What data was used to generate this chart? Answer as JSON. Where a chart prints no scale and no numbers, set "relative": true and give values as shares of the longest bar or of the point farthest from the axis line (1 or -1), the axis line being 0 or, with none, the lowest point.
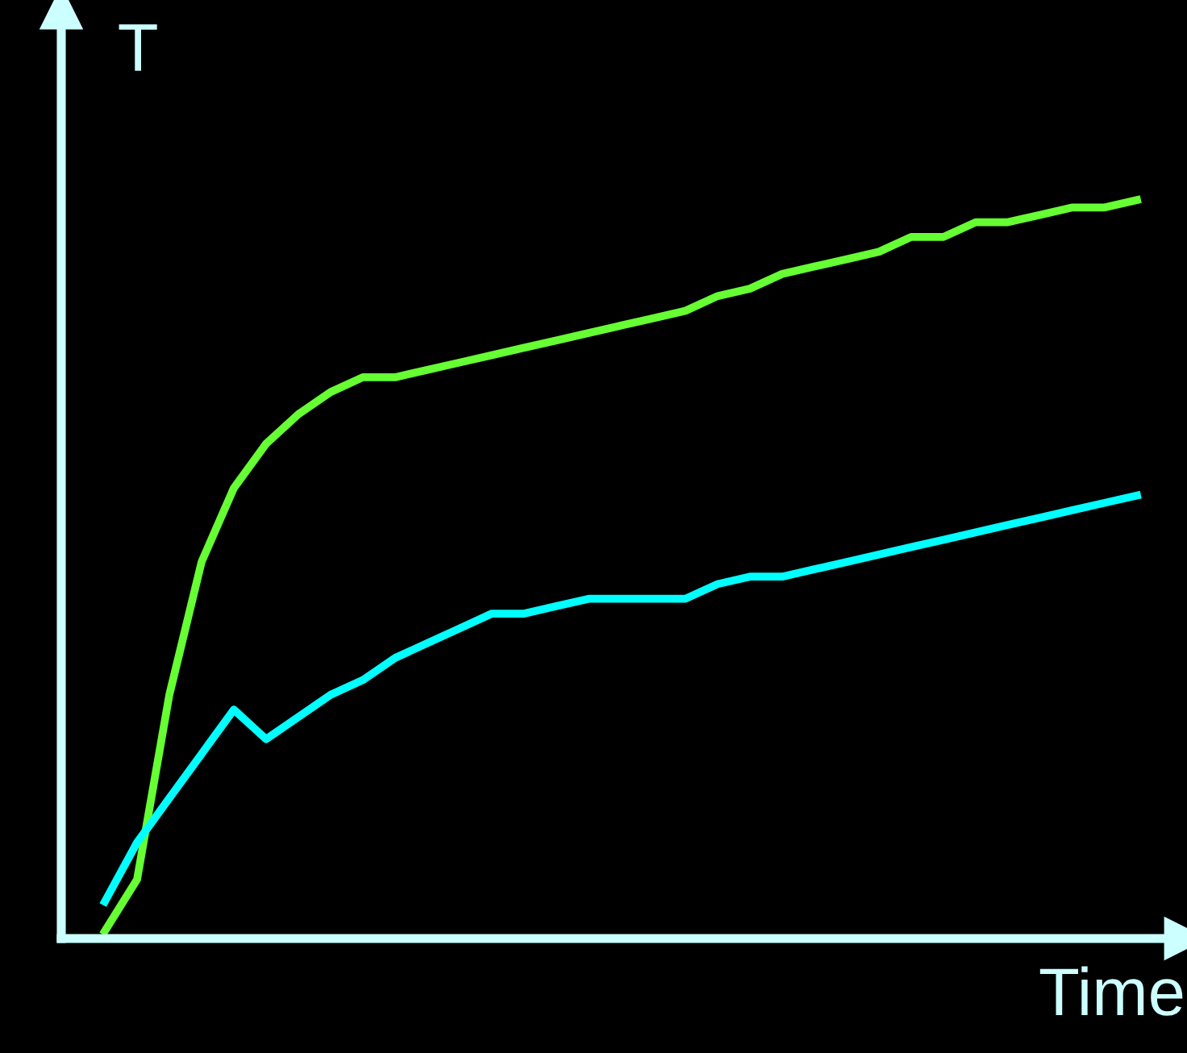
{
  "chart_data": {
    "type": "line",
    "xlabel": "Time",
    "ylabel": "T",
    "relative": true,
    "legend": false,
    "marker": "none",
    "line_style": "solid",
    "categories": [
      null,
      null,
      null,
      null,
      null,
      null,
      null,
      null,
      null,
      null,
      null,
      null,
      null,
      null,
      null,
      null,
      null,
      null,
      null,
      null,
      null,
      null,
      null,
      null,
      null,
      null,
      null,
      null,
      null,
      null,
      null,
      null,
      null
    ],
    "series": [
      {
        "color": "#66ff33",
        "values": [
          0.01,
          0.08,
          0.33,
          0.51,
          0.61,
          0.67,
          0.71,
          0.74,
          0.76,
          0.76,
          0.77,
          0.78,
          0.79,
          0.8,
          0.81,
          0.82,
          0.83,
          0.84,
          0.85,
          0.87,
          0.88,
          0.9,
          0.91,
          0.92,
          0.93,
          0.95,
          0.95,
          0.97,
          0.97,
          0.98,
          0.99,
          0.99,
          1.0
        ]
      },
      {
        "color": "#00ffff",
        "values": [
          0.05,
          0.13,
          0.19,
          0.25,
          0.31,
          0.27,
          0.3,
          0.33,
          0.35,
          0.38,
          0.4,
          0.42,
          0.44,
          0.44,
          0.45,
          0.46,
          0.46,
          0.46,
          0.46,
          0.48,
          0.49,
          0.49,
          0.5,
          0.51,
          0.52,
          0.53,
          0.54,
          0.55,
          0.56,
          0.57,
          0.58,
          0.59,
          0.6
        ]
      }
    ]
  }
}
